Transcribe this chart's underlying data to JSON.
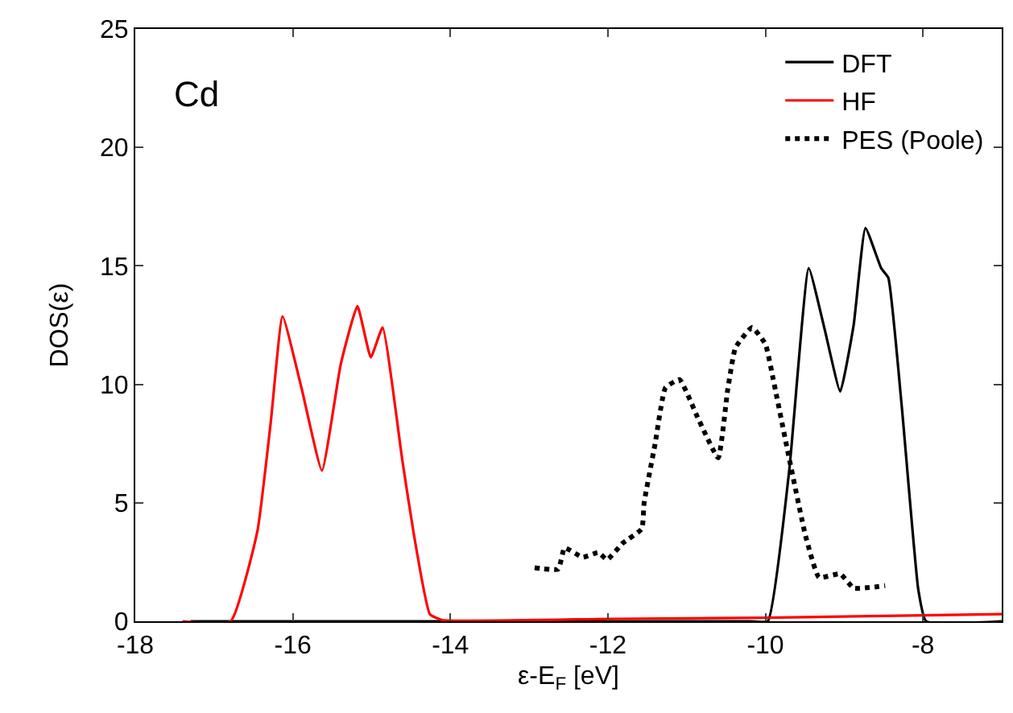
{
  "chart_data": {
    "type": "line",
    "xlabel": "ε-E$_{F}$ [eV]",
    "ylabel": "DOS(ε)",
    "annotations": [
      "Cd"
    ],
    "xlim": [
      -18,
      -7
    ],
    "xticks": [
      -18,
      -16,
      -14,
      -12,
      -10,
      -8
    ],
    "ylim": [
      0,
      25
    ],
    "yticks": [
      0,
      5,
      10,
      15,
      20,
      25
    ],
    "grid": false,
    "legend": "top right",
    "marker": "none",
    "series": [
      {
        "name": "DFT",
        "color": "#000000",
        "line_style": "solid",
        "x": [
          -17.3,
          -10.2,
          -9.97,
          -9.7,
          -9.45,
          -9.25,
          -9.05,
          -8.88,
          -8.73,
          -8.53,
          -8.44,
          -8.27,
          -8.06,
          -7.96,
          -7
        ],
        "values": [
          0,
          0,
          0,
          6.3,
          14.9,
          12.35,
          9.7,
          12.5,
          16.6,
          14.9,
          14.5,
          9.1,
          1.35,
          0,
          0
        ]
      },
      {
        "name": "HF",
        "color": "#ff0000",
        "line_style": "solid",
        "x": [
          -17.4,
          -16.79,
          -16.45,
          -16.28,
          -16.13,
          -15.89,
          -15.63,
          -15.39,
          -15.18,
          -15.01,
          -14.86,
          -14.61,
          -14.47,
          -14.26,
          -14.1,
          -12,
          -10,
          -8,
          -7
        ],
        "values": [
          0,
          0,
          3.8,
          8.4,
          12.87,
          9.85,
          6.36,
          10.87,
          13.3,
          11.14,
          12.4,
          6.8,
          3.8,
          0.3,
          0.05,
          0.1,
          0.15,
          0.25,
          0.3
        ]
      },
      {
        "name": "PES (Poole)",
        "color": "#000000",
        "line_style": "dotted",
        "x": [
          -12.93,
          -12.63,
          -12.55,
          -12.32,
          -12.12,
          -12.01,
          -11.81,
          -11.57,
          -11.54,
          -11.4,
          -11.27,
          -11.09,
          -10.86,
          -10.6,
          -10.48,
          -10.38,
          -10.17,
          -10,
          -9.9,
          -9.7,
          -9.49,
          -9.32,
          -9.05,
          -8.88,
          -8.48
        ],
        "values": [
          2.26,
          2.2,
          3.1,
          2.7,
          2.9,
          2.6,
          3.3,
          3.9,
          5,
          7.5,
          9.85,
          10.2,
          8.6,
          6.9,
          9.75,
          11.55,
          12.4,
          11.7,
          10.2,
          6.9,
          3.6,
          1.85,
          2,
          1.4,
          1.5
        ]
      }
    ]
  }
}
